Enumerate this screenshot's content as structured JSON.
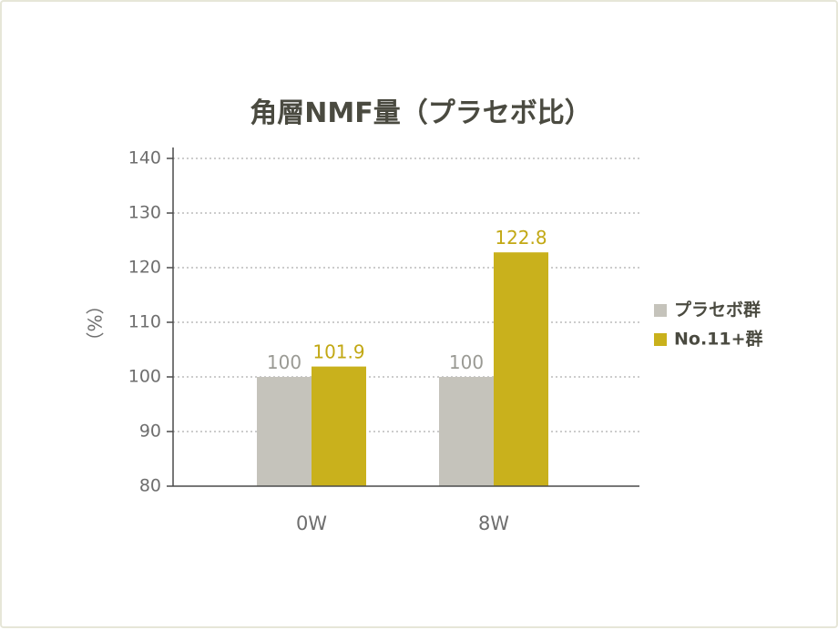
{
  "chart_data": {
    "type": "bar",
    "title": "角層NMF量（プラセボ比）",
    "ylabel": "（%）",
    "xlabel": "",
    "categories": [
      "0W",
      "8W"
    ],
    "ylim": [
      80,
      140
    ],
    "yticks": [
      80,
      90,
      100,
      110,
      120,
      130,
      140
    ],
    "grid": true,
    "legend_position": "right",
    "series": [
      {
        "name": "プラセボ群",
        "values": [
          100,
          100
        ],
        "labels": [
          "100",
          "100"
        ],
        "color": "#c5c3bb",
        "label_color": "#9a9a94"
      },
      {
        "name": "No.11+群",
        "values": [
          101.9,
          122.8
        ],
        "labels": [
          "101.9",
          "122.8"
        ],
        "color": "#c9b11c",
        "label_color": "#c2a814"
      }
    ]
  }
}
